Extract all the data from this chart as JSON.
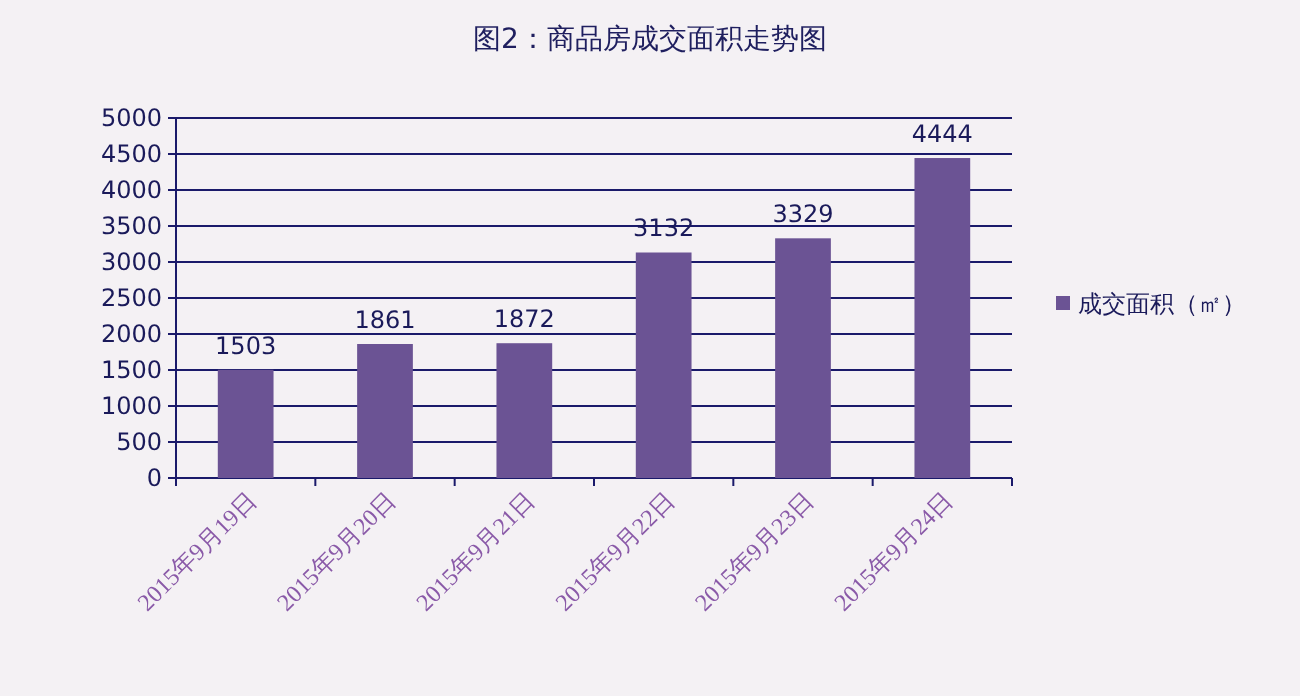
{
  "chart_data": {
    "type": "bar",
    "title": "图2：商品房成交面积走势图",
    "categories": [
      "2015年9月19日",
      "2015年9月20日",
      "2015年9月21日",
      "2015年9月22日",
      "2015年9月23日",
      "2015年9月24日"
    ],
    "series": [
      {
        "name": "成交面积（㎡）",
        "color": "#6b5394",
        "values": [
          1503,
          1861,
          1872,
          3132,
          3329,
          4444
        ]
      }
    ],
    "ylim": [
      0,
      5000
    ],
    "yticks": [
      0,
      500,
      1000,
      1500,
      2000,
      2500,
      3000,
      3500,
      4000,
      4500,
      5000
    ],
    "grid": "y",
    "legend": "right",
    "data_labels": true
  }
}
